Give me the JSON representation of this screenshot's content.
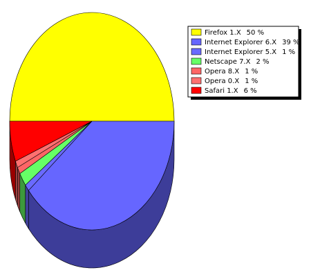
{
  "chart_data": {
    "type": "pie3d",
    "categories": [
      "Firefox 1.X",
      "Internet Explorer 6.X",
      "Internet Explorer 5.X",
      "Netscape 7.X",
      "Opera 8.X",
      "Opera 0.X",
      "Safari 1.X"
    ],
    "values": [
      50,
      39,
      1,
      2,
      1,
      1,
      6
    ],
    "value_labels": [
      "50 %",
      "39 %",
      "1 %",
      "2 %",
      "1 %",
      "1 %",
      "6 %"
    ],
    "colors": [
      "#ffff00",
      "#6666ff",
      "#6a6aff",
      "#66ff66",
      "#ff6666",
      "#ff7070",
      "#ff0000"
    ],
    "legend": "top-right"
  }
}
